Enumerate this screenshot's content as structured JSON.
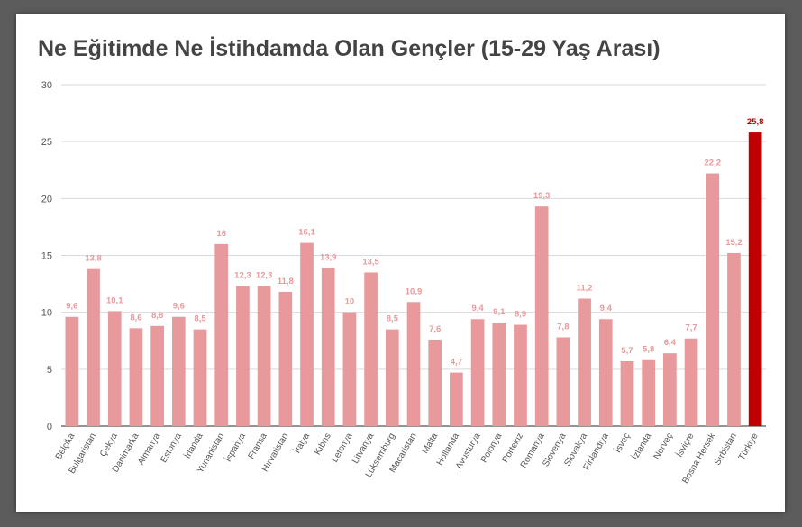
{
  "chart_data": {
    "type": "bar",
    "title": "Ne Eğitimde Ne İstihdamda Olan Gençler (15-29 Yaş Arası)",
    "xlabel": "",
    "ylabel": "",
    "ylim": [
      0,
      30
    ],
    "yticks": [
      "0",
      "5",
      "10",
      "15",
      "20",
      "25",
      "30"
    ],
    "grid": true,
    "categories": [
      "Belçika",
      "Bulgaristan",
      "Çekya",
      "Danimarka",
      "Almanya",
      "Estonya",
      "İrlanda",
      "Yunanistan",
      "İspanya",
      "Fransa",
      "Hırvatistan",
      "İtalya",
      "Kıbrıs",
      "Letonya",
      "Litvanya",
      "Lüksemburg",
      "Macaristan",
      "Malta",
      "Hollanda",
      "Avusturya",
      "Polonya",
      "Portekiz",
      "Romanya",
      "Slovenya",
      "Slovakya",
      "Finlandiya",
      "İsveç",
      "İzlanda",
      "Norveç",
      "İsviçre",
      "Bosna Hersek",
      "Sırbistan",
      "Türkiye"
    ],
    "values": [
      9.6,
      13.8,
      10.1,
      8.6,
      8.8,
      9.6,
      8.5,
      16,
      12.3,
      12.3,
      11.8,
      16.1,
      13.9,
      10,
      13.5,
      8.5,
      10.9,
      7.6,
      4.7,
      9.4,
      9.1,
      8.9,
      19.3,
      7.8,
      11.2,
      9.4,
      5.7,
      5.8,
      6.4,
      7.7,
      22.2,
      15.2,
      25.8
    ],
    "value_labels": [
      "9,6",
      "13,8",
      "10,1",
      "8,6",
      "8,8",
      "9,6",
      "8,5",
      "16",
      "12,3",
      "12,3",
      "11,8",
      "16,1",
      "13,9",
      "10",
      "13,5",
      "8,5",
      "10,9",
      "7,6",
      "4,7",
      "9,4",
      "9,1",
      "8,9",
      "19,3",
      "7,8",
      "11,2",
      "9,4",
      "5,7",
      "5,8",
      "6,4",
      "7,7",
      "22,2",
      "15,2",
      "25,8"
    ],
    "highlight_category": "Türkiye",
    "colors": {
      "bar": "#e8999b",
      "bar_highlight": "#c00000",
      "label": "#e8999b",
      "label_highlight": "#c00000",
      "grid": "#d9d9d9",
      "axis": "#555555"
    }
  }
}
